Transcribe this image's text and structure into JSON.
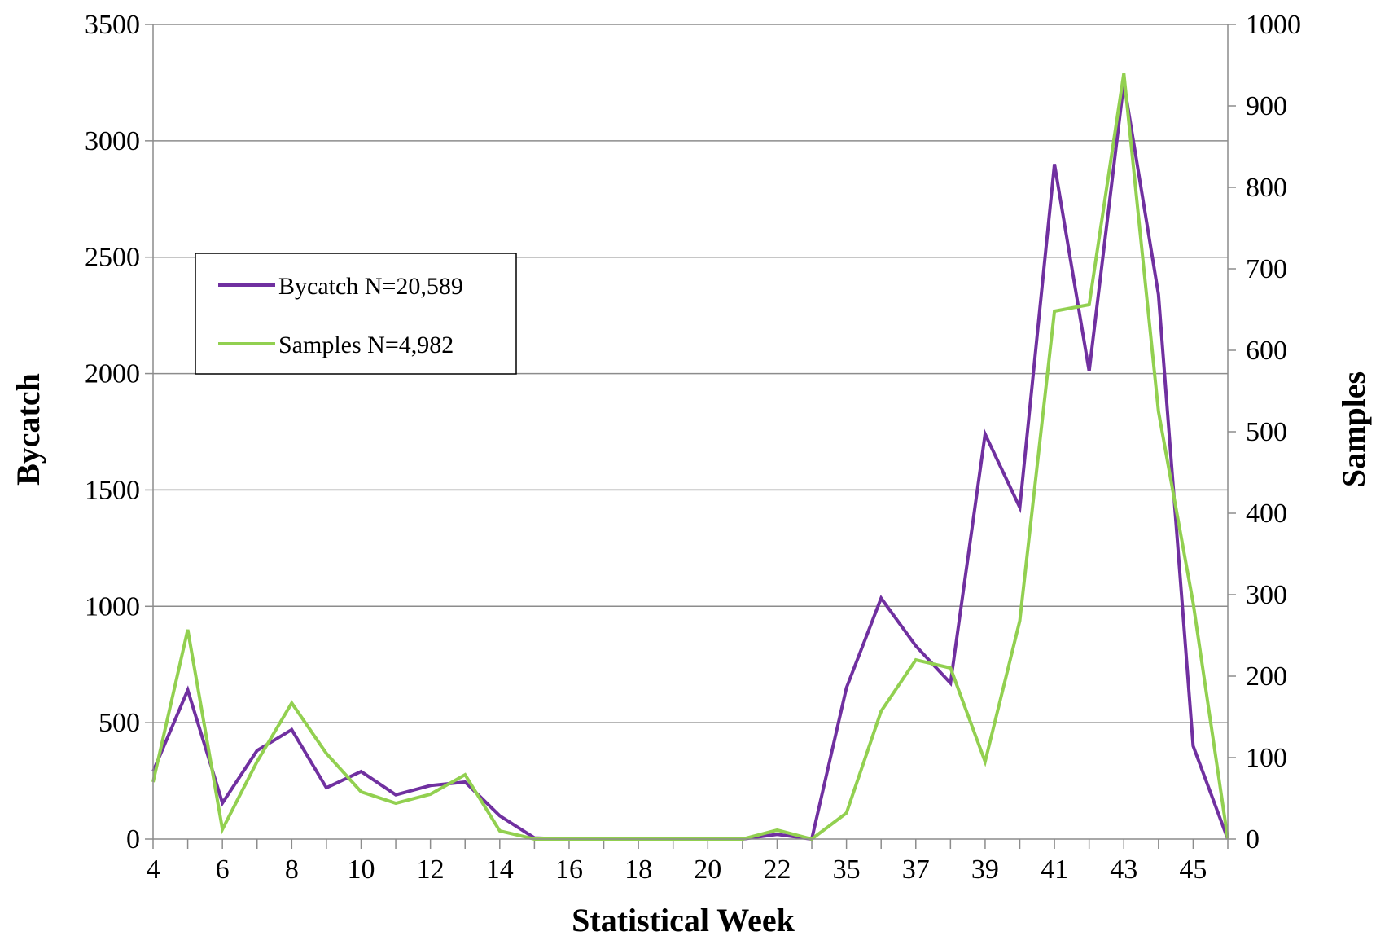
{
  "chart_data": {
    "type": "line",
    "xlabel": "Statistical Week",
    "ylabel": "Bycatch",
    "y2label": "Samples",
    "ylim": [
      0,
      3500
    ],
    "y2lim": [
      0,
      1000
    ],
    "yticks": [
      "0",
      "500",
      "1000",
      "1500",
      "2000",
      "2500",
      "3000",
      "3500"
    ],
    "y2ticks": [
      "0",
      "100",
      "200",
      "300",
      "400",
      "500",
      "600",
      "700",
      "800",
      "900",
      "1000"
    ],
    "categories": [
      "4",
      "5",
      "6",
      "7",
      "8",
      "9",
      "10",
      "11",
      "12",
      "13",
      "14",
      "15",
      "16",
      "17",
      "18",
      "19",
      "20",
      "21",
      "22",
      "23",
      "35",
      "36",
      "37",
      "38",
      "39",
      "40",
      "41",
      "42",
      "43",
      "44",
      "45",
      "46"
    ],
    "tick_labels": [
      "4",
      "",
      "6",
      "",
      "8",
      "",
      "10",
      "",
      "12",
      "",
      "14",
      "",
      "16",
      "",
      "18",
      "",
      "20",
      "",
      "22",
      "",
      "35",
      "",
      "37",
      "",
      "39",
      "",
      "41",
      "",
      "43",
      "",
      "45",
      ""
    ],
    "grid": true,
    "legend_position": "upper-left",
    "series": [
      {
        "name": "Bycatch N=20,589",
        "axis": "left",
        "color": "#7030A0",
        "values": [
          290,
          640,
          155,
          380,
          470,
          220,
          290,
          190,
          230,
          245,
          100,
          5,
          0,
          0,
          0,
          0,
          0,
          0,
          20,
          0,
          650,
          1035,
          830,
          670,
          1740,
          1425,
          2900,
          2010,
          3250,
          2340,
          400,
          0
        ]
      },
      {
        "name": "Samples N=4,982",
        "axis": "right",
        "color": "#92D050",
        "values": [
          70,
          257,
          12,
          95,
          167,
          105,
          58,
          44,
          55,
          79,
          10,
          0,
          0,
          0,
          0,
          0,
          0,
          0,
          11,
          0,
          32,
          157,
          220,
          210,
          95,
          268,
          648,
          656,
          940,
          525,
          290,
          0
        ]
      }
    ]
  }
}
